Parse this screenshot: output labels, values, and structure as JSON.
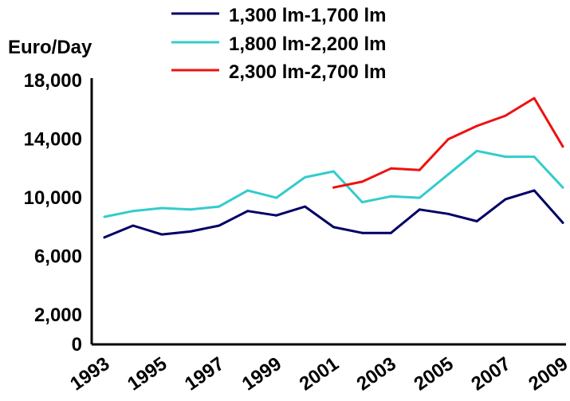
{
  "chart_data": {
    "type": "line",
    "ylabel": "Euro/Day",
    "xlabel": "",
    "ylim": [
      0,
      18000
    ],
    "x": [
      1993,
      1994,
      1995,
      1996,
      1997,
      1998,
      1999,
      2000,
      2001,
      2002,
      2003,
      2004,
      2005,
      2006,
      2007,
      2008,
      2009
    ],
    "x_tick_labels": [
      "1993",
      "1995",
      "1997",
      "1999",
      "2001",
      "2003",
      "2005",
      "2007",
      "2009"
    ],
    "y_tick_values": [
      0,
      2000,
      6000,
      10000,
      14000,
      18000
    ],
    "y_tick_labels": [
      "0",
      "2,000",
      "6,000",
      "10,000",
      "14,000",
      "18,000"
    ],
    "legend_position": "top",
    "grid": false,
    "series": [
      {
        "name": "1,300 lm-1,700 lm",
        "color": "#000066",
        "x": [
          1993,
          1994,
          1995,
          1996,
          1997,
          1998,
          1999,
          2000,
          2001,
          2002,
          2003,
          2004,
          2005,
          2006,
          2007,
          2008,
          2009
        ],
        "values": [
          7300,
          8100,
          7500,
          7700,
          8100,
          9100,
          8800,
          9400,
          8000,
          7600,
          7600,
          9200,
          8900,
          8400,
          9900,
          10500,
          8300
        ]
      },
      {
        "name": "1,800 lm-2,200 lm",
        "color": "#33CCCC",
        "x": [
          1993,
          1994,
          1995,
          1996,
          1997,
          1998,
          1999,
          2000,
          2001,
          2002,
          2003,
          2004,
          2005,
          2006,
          2007,
          2008,
          2009
        ],
        "values": [
          8700,
          9100,
          9300,
          9200,
          9400,
          10500,
          10000,
          11400,
          11800,
          9700,
          10100,
          10000,
          11600,
          13200,
          12800,
          12800,
          10700
        ]
      },
      {
        "name": "2,300 lm-2,700 lm",
        "color": "#EE1111",
        "x": [
          2001,
          2002,
          2003,
          2004,
          2005,
          2006,
          2007,
          2008,
          2009
        ],
        "values": [
          10700,
          11100,
          12000,
          11900,
          14000,
          14900,
          15600,
          16800,
          13500
        ]
      }
    ]
  }
}
